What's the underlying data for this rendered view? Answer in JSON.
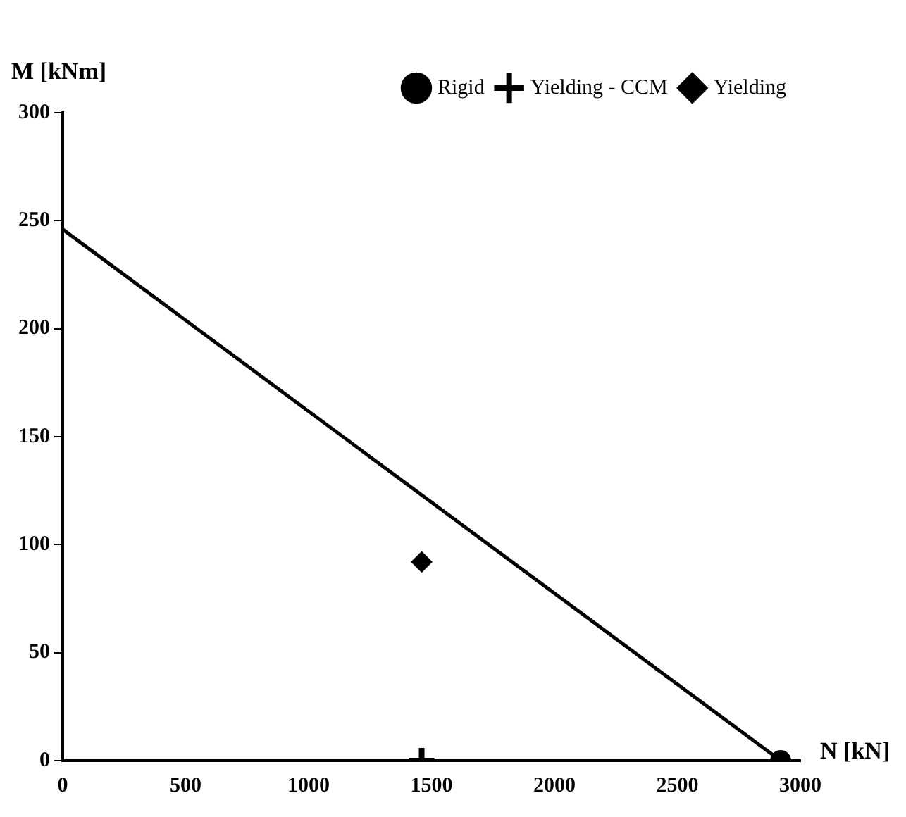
{
  "chart_data": {
    "type": "scatter",
    "xlabel": "N [kN]",
    "ylabel": "M [kNm]",
    "xlim": [
      0,
      3000
    ],
    "xticks": [
      0,
      500,
      1000,
      1500,
      2000,
      2500,
      3000
    ],
    "ylim": [
      0,
      300
    ],
    "yticks": [
      0,
      50,
      100,
      150,
      200,
      250,
      300
    ],
    "grid": false,
    "legend": "top right",
    "series": [
      {
        "type": "line",
        "color": "#000000",
        "x": [
          0,
          2920
        ],
        "values": [
          246,
          0
        ],
        "marker": "none",
        "line_style": "solid"
      },
      {
        "name": "Rigid",
        "color": "#000000",
        "x": [
          2920
        ],
        "values": [
          0
        ],
        "marker": "circle"
      },
      {
        "name": "Yielding - CCM",
        "color": "#000000",
        "x": [
          1460
        ],
        "values": [
          0
        ],
        "marker": "cross"
      },
      {
        "name": "Yielding",
        "color": "#000000",
        "x": [
          1460
        ],
        "values": [
          92
        ],
        "marker": "diamond"
      }
    ]
  }
}
